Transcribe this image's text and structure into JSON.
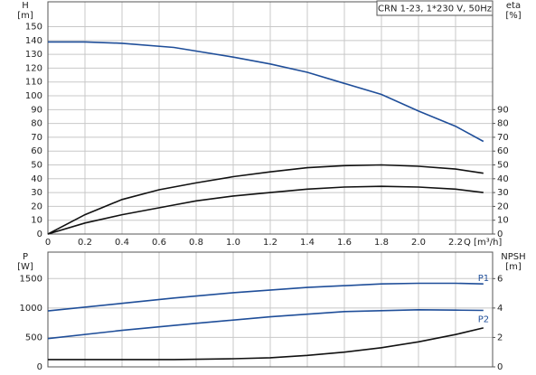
{
  "chart_data": [
    {
      "type": "line",
      "annotation": "CRN 1-23, 1*230 V, 50Hz",
      "ylabel": "H",
      "yunit": "[m]",
      "y2label": "eta",
      "y2unit": "[%]",
      "xlabel": "Q [m³/h]",
      "xlim": [
        0,
        2.4
      ],
      "xticks": [
        0,
        0.2,
        0.4,
        0.6,
        0.8,
        {
          "value": 1,
          "label": "1.0"
        },
        1.2,
        1.4,
        1.6,
        1.8,
        {
          "value": 2,
          "label": "2.0"
        },
        2.2
      ],
      "ylim": [
        0,
        168
      ],
      "yticks": [
        0,
        10,
        20,
        30,
        40,
        50,
        60,
        70,
        80,
        90,
        100,
        110,
        120,
        130,
        140,
        150
      ],
      "y2lim": [
        0,
        168
      ],
      "y2ticks": [
        0,
        10,
        20,
        30,
        40,
        50,
        60,
        70,
        80,
        90
      ],
      "grid": true,
      "series": [
        {
          "color": "#1f4e99",
          "x": [
            0,
            0.2,
            0.4,
            0.68,
            1.0,
            1.2,
            1.4,
            1.6,
            1.8,
            2.0,
            2.2,
            2.35
          ],
          "values": [
            139,
            139,
            138,
            135,
            128,
            123,
            117,
            109,
            101,
            89,
            78,
            67
          ]
        },
        {
          "color": "#111111",
          "axis": "y2",
          "x": [
            0,
            0.2,
            0.4,
            0.6,
            0.8,
            1.0,
            1.2,
            1.4,
            1.6,
            1.8,
            2.0,
            2.2,
            2.35
          ],
          "values": [
            0,
            14,
            25,
            32,
            37,
            41.5,
            45,
            48,
            49.5,
            50,
            49,
            47,
            44
          ]
        },
        {
          "color": "#111111",
          "axis": "y2",
          "x": [
            0,
            0.2,
            0.4,
            0.68,
            0.8,
            1.0,
            1.2,
            1.4,
            1.6,
            1.8,
            2.0,
            2.2,
            2.35
          ],
          "values": [
            0,
            8,
            14,
            21,
            24,
            27.5,
            30,
            32.5,
            34,
            34.5,
            34,
            32.5,
            30
          ]
        }
      ]
    },
    {
      "type": "line",
      "ylabel": "P",
      "yunit": "[W]",
      "y2label": "NPSH",
      "y2unit": "[m]",
      "xlim": [
        0,
        2.4
      ],
      "xticks": [
        0,
        0.2,
        0.4,
        0.6,
        0.8,
        1,
        1.2,
        1.4,
        1.6,
        1.8,
        2,
        2.2
      ],
      "ylim": [
        0,
        1950
      ],
      "yticks": [
        0,
        500,
        1000,
        1500
      ],
      "y2lim": [
        0,
        7.8
      ],
      "y2ticks": [
        0,
        2,
        4,
        6
      ],
      "grid": true,
      "series": [
        {
          "name": "P1",
          "color": "#1f4e99",
          "x": [
            0,
            0.4,
            0.68,
            1.0,
            1.4,
            1.8,
            2.0,
            2.2,
            2.35
          ],
          "values": [
            950,
            1080,
            1170,
            1260,
            1350,
            1410,
            1420,
            1420,
            1410
          ]
        },
        {
          "name": "P2",
          "color": "#1f4e99",
          "x": [
            0,
            0.4,
            0.8,
            1.2,
            1.6,
            2.0,
            2.2,
            2.35
          ],
          "values": [
            480,
            620,
            740,
            850,
            940,
            970,
            965,
            960
          ]
        },
        {
          "color": "#111111",
          "axis": "y2",
          "x": [
            0,
            0.68,
            1.0,
            1.2,
            1.4,
            1.6,
            1.8,
            2.0,
            2.2,
            2.35
          ],
          "values": [
            0.5,
            0.5,
            0.55,
            0.62,
            0.78,
            1.0,
            1.3,
            1.7,
            2.2,
            2.65
          ]
        }
      ]
    }
  ]
}
